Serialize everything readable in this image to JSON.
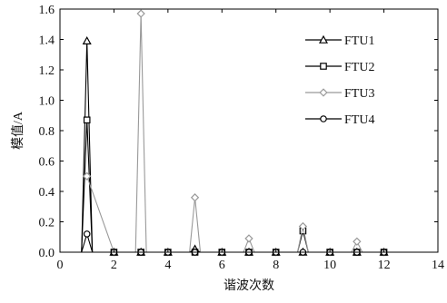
{
  "chart_data": {
    "type": "line",
    "title": "",
    "xlabel": "谐波次数",
    "ylabel": "模值/A",
    "xlim": [
      0,
      14
    ],
    "ylim": [
      0,
      1.6
    ],
    "xticks": [
      0,
      2,
      4,
      6,
      8,
      10,
      12,
      14
    ],
    "yticks": [
      0.0,
      0.2,
      0.4,
      0.6,
      0.8,
      1.0,
      1.2,
      1.4,
      1.6
    ],
    "x_tick_labels": [
      "0",
      "2",
      "4",
      "6",
      "8",
      "10",
      "12",
      "14"
    ],
    "y_tick_labels": [
      "0.0",
      "0.2",
      "0.4",
      "0.6",
      "0.8",
      "1.0",
      "1.2",
      "1.4",
      "1.6"
    ],
    "grid": false,
    "legend_position": "top-right",
    "series": [
      {
        "name": "FTU1",
        "color": "#000000",
        "marker": "triangle",
        "points": [
          [
            0.8,
            0.0
          ],
          [
            1,
            1.39
          ],
          [
            1.2,
            0.0
          ],
          [
            2,
            0.0
          ],
          [
            3,
            0.0
          ],
          [
            4,
            0.0
          ],
          [
            4.8,
            0.0
          ],
          [
            5,
            0.02
          ],
          [
            5.2,
            0.0
          ],
          [
            6,
            0.0
          ],
          [
            7,
            0.0
          ],
          [
            8,
            0.0
          ],
          [
            9,
            0.0
          ],
          [
            10,
            0.0
          ],
          [
            11,
            0.0
          ],
          [
            12,
            0.0
          ]
        ]
      },
      {
        "name": "FTU2",
        "color": "#000000",
        "marker": "square",
        "points": [
          [
            0.8,
            0.0
          ],
          [
            1,
            0.87
          ],
          [
            1.2,
            0.0
          ],
          [
            2,
            0.0
          ],
          [
            3,
            0.0
          ],
          [
            4,
            0.0
          ],
          [
            5,
            0.0
          ],
          [
            6,
            0.0
          ],
          [
            7,
            0.0
          ],
          [
            8,
            0.0
          ],
          [
            8.8,
            0.0
          ],
          [
            9,
            0.14
          ],
          [
            9.2,
            0.0
          ],
          [
            10,
            0.0
          ],
          [
            11,
            0.0
          ],
          [
            12,
            0.0
          ]
        ]
      },
      {
        "name": "FTU3",
        "color": "#999999",
        "marker": "diamond",
        "points": [
          [
            1,
            0.5
          ],
          [
            2,
            0.0
          ],
          [
            2.8,
            0.0
          ],
          [
            3,
            1.57
          ],
          [
            3.2,
            0.0
          ],
          [
            4,
            0.0
          ],
          [
            4.8,
            0.0
          ],
          [
            5,
            0.36
          ],
          [
            5.2,
            0.0
          ],
          [
            6,
            0.0
          ],
          [
            6.8,
            0.0
          ],
          [
            7,
            0.09
          ],
          [
            7.2,
            0.0
          ],
          [
            8,
            0.0
          ],
          [
            8.8,
            0.0
          ],
          [
            9,
            0.17
          ],
          [
            9.2,
            0.0
          ],
          [
            10,
            0.0
          ],
          [
            10.8,
            0.0
          ],
          [
            11,
            0.07
          ],
          [
            11.2,
            0.0
          ],
          [
            12,
            0.0
          ]
        ]
      },
      {
        "name": "FTU4",
        "color": "#000000",
        "marker": "circle",
        "points": [
          [
            0.8,
            0.0
          ],
          [
            1,
            0.12
          ],
          [
            1.2,
            0.0
          ],
          [
            2,
            0.0
          ],
          [
            3,
            0.0
          ],
          [
            4,
            0.0
          ],
          [
            5,
            0.0
          ],
          [
            6,
            0.0
          ],
          [
            7,
            0.0
          ],
          [
            8,
            0.0
          ],
          [
            9,
            0.0
          ],
          [
            10,
            0.0
          ],
          [
            11,
            0.0
          ],
          [
            12,
            0.0
          ]
        ]
      }
    ]
  }
}
